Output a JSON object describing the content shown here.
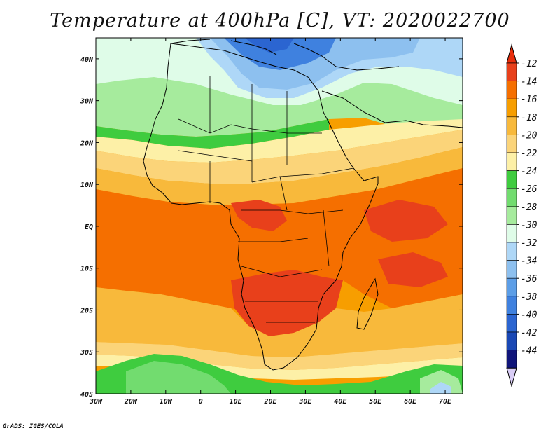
{
  "title": "Temperature at 400hPa [C], VT: 2020022700",
  "credit": "GrADS: IGES/COLA",
  "map": {
    "lat_range": [
      -40,
      45
    ],
    "lon_range": [
      -30,
      75
    ],
    "y_ticks": [
      {
        "value": 40,
        "label": "40N"
      },
      {
        "value": 30,
        "label": "30N"
      },
      {
        "value": 20,
        "label": "20N"
      },
      {
        "value": 10,
        "label": "10N"
      },
      {
        "value": 0,
        "label": "EQ"
      },
      {
        "value": -10,
        "label": "10S"
      },
      {
        "value": -20,
        "label": "20S"
      },
      {
        "value": -30,
        "label": "30S"
      },
      {
        "value": -40,
        "label": "40S"
      }
    ],
    "x_ticks": [
      {
        "value": -30,
        "label": "30W"
      },
      {
        "value": -20,
        "label": "20W"
      },
      {
        "value": -10,
        "label": "10W"
      },
      {
        "value": 0,
        "label": "0"
      },
      {
        "value": 10,
        "label": "10E"
      },
      {
        "value": 20,
        "label": "20E"
      },
      {
        "value": 30,
        "label": "30E"
      },
      {
        "value": 40,
        "label": "40E"
      },
      {
        "value": 50,
        "label": "50E"
      },
      {
        "value": 60,
        "label": "60E"
      },
      {
        "value": 70,
        "label": "70E"
      }
    ]
  },
  "colorbar": {
    "labels": [
      "-12",
      "-14",
      "-16",
      "-18",
      "-20",
      "-22",
      "-24",
      "-26",
      "-28",
      "-30",
      "-32",
      "-34",
      "-36",
      "-38",
      "-40",
      "-42",
      "-44"
    ],
    "colors": [
      "#e8401b",
      "#f56f00",
      "#f79e00",
      "#f8b93b",
      "#fbd479",
      "#fdf0a7",
      "#3fcc3f",
      "#72dc6f",
      "#a6eb9d",
      "#dffce8",
      "#aed7f7",
      "#8dc0ef",
      "#5c9ee7",
      "#3f81df",
      "#2b65d1",
      "#1a48b5",
      "#10157a"
    ],
    "top_arrow_color": "#e82e0c",
    "bottom_arrow_color": "#d8ccf5"
  },
  "temp_colors": {
    "t12": "#e8401b",
    "t14": "#f56f00",
    "t16": "#f79e00",
    "t18": "#f8b93b",
    "t20": "#fbd479",
    "t22": "#fdf0a7",
    "t24": "#3fcc3f",
    "t26": "#72dc6f",
    "t28": "#a6eb9d",
    "t30": "#dffce8",
    "t32": "#aed7f7",
    "t34": "#8dc0ef",
    "t36": "#5c9ee7",
    "t38": "#3f81df",
    "t40": "#2b65d1"
  }
}
